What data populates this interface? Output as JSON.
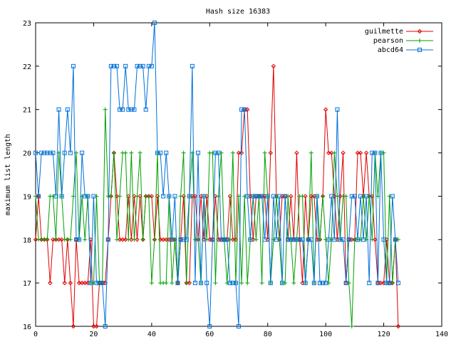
{
  "chart_data": {
    "type": "line",
    "title": "Hash size 16383",
    "xlabel": "",
    "ylabel": "maximum list length",
    "xlim": [
      0,
      140
    ],
    "ylim": [
      16,
      23
    ],
    "xticks": [
      0,
      20,
      40,
      60,
      80,
      100,
      120,
      140
    ],
    "yticks": [
      16,
      17,
      18,
      19,
      20,
      21,
      22,
      23
    ],
    "grid": false,
    "legend_position": "top-right",
    "series": [
      {
        "name": "guilmette",
        "color": "#e00000",
        "marker": "diamond",
        "values": [
          18,
          19,
          18,
          18,
          18,
          17,
          18,
          18,
          18,
          18,
          17,
          18,
          17,
          16,
          18,
          17,
          17,
          17,
          17,
          18,
          16,
          16,
          17,
          17,
          17,
          18,
          19,
          20,
          19,
          18,
          18,
          18,
          19,
          18,
          19,
          18,
          19,
          18,
          19,
          19,
          19,
          18,
          19,
          18,
          18,
          18,
          18,
          18,
          18,
          17,
          18,
          19,
          17,
          17,
          19,
          19,
          18,
          19,
          18,
          19,
          18,
          18,
          19,
          18,
          18,
          18,
          18,
          19,
          18,
          18,
          20,
          20,
          21,
          21,
          19,
          18,
          19,
          19,
          19,
          19,
          18,
          20,
          22,
          19,
          18,
          19,
          19,
          18,
          19,
          18,
          20,
          18,
          17,
          19,
          18,
          19,
          19,
          18,
          18,
          19,
          21,
          20,
          20,
          19,
          18,
          19,
          20,
          17,
          18,
          18,
          18,
          20,
          20,
          19,
          20,
          19,
          19,
          18,
          17,
          17,
          17,
          18,
          17,
          17,
          18,
          16
        ]
      },
      {
        "name": "pearson",
        "color": "#00a000",
        "marker": "plus",
        "values": [
          19,
          18,
          18,
          18,
          18,
          19,
          19,
          18,
          20,
          19,
          18,
          18,
          18,
          19,
          20,
          18,
          19,
          18,
          19,
          17,
          17,
          19,
          17,
          17,
          21,
          19,
          19,
          20,
          18,
          19,
          20,
          20,
          18,
          20,
          18,
          19,
          20,
          18,
          19,
          19,
          17,
          18,
          20,
          17,
          17,
          17,
          19,
          17,
          18,
          17,
          19,
          20,
          17,
          19,
          20,
          18,
          18,
          17,
          19,
          18,
          20,
          20,
          17,
          19,
          20,
          18,
          17,
          18,
          20,
          17,
          19,
          17,
          19,
          17,
          18,
          19,
          18,
          19,
          17,
          20,
          19,
          17,
          18,
          19,
          18,
          17,
          17,
          19,
          18,
          17,
          18,
          19,
          19,
          17,
          18,
          20,
          17,
          19,
          18,
          19,
          18,
          17,
          18,
          20,
          19,
          18,
          19,
          19,
          17,
          16,
          18,
          18,
          18,
          19,
          18,
          19,
          18,
          20,
          19,
          20,
          20,
          17,
          19,
          17,
          18,
          18
        ]
      },
      {
        "name": "abcd64",
        "color": "#0070d8",
        "marker": "square",
        "values": [
          20,
          19,
          20,
          20,
          20,
          20,
          20,
          19,
          21,
          19,
          20,
          21,
          20,
          22,
          18,
          18,
          20,
          19,
          19,
          17,
          19,
          17,
          17,
          17,
          16,
          18,
          22,
          22,
          22,
          21,
          21,
          22,
          21,
          21,
          21,
          22,
          22,
          22,
          21,
          22,
          22,
          23,
          20,
          20,
          19,
          20,
          19,
          18,
          19,
          17,
          18,
          18,
          18,
          19,
          22,
          17,
          20,
          17,
          19,
          17,
          16,
          18,
          20,
          20,
          18,
          18,
          18,
          17,
          17,
          17,
          16,
          21,
          21,
          19,
          18,
          19,
          19,
          19,
          19,
          18,
          19,
          17,
          19,
          18,
          19,
          17,
          19,
          18,
          18,
          18,
          18,
          18,
          18,
          17,
          18,
          18,
          17,
          19,
          17,
          17,
          17,
          18,
          19,
          18,
          21,
          18,
          18,
          17,
          18,
          19,
          19,
          18,
          19,
          18,
          19,
          17,
          20,
          20,
          17,
          20,
          18,
          17,
          17,
          19,
          18,
          17
        ]
      }
    ]
  }
}
